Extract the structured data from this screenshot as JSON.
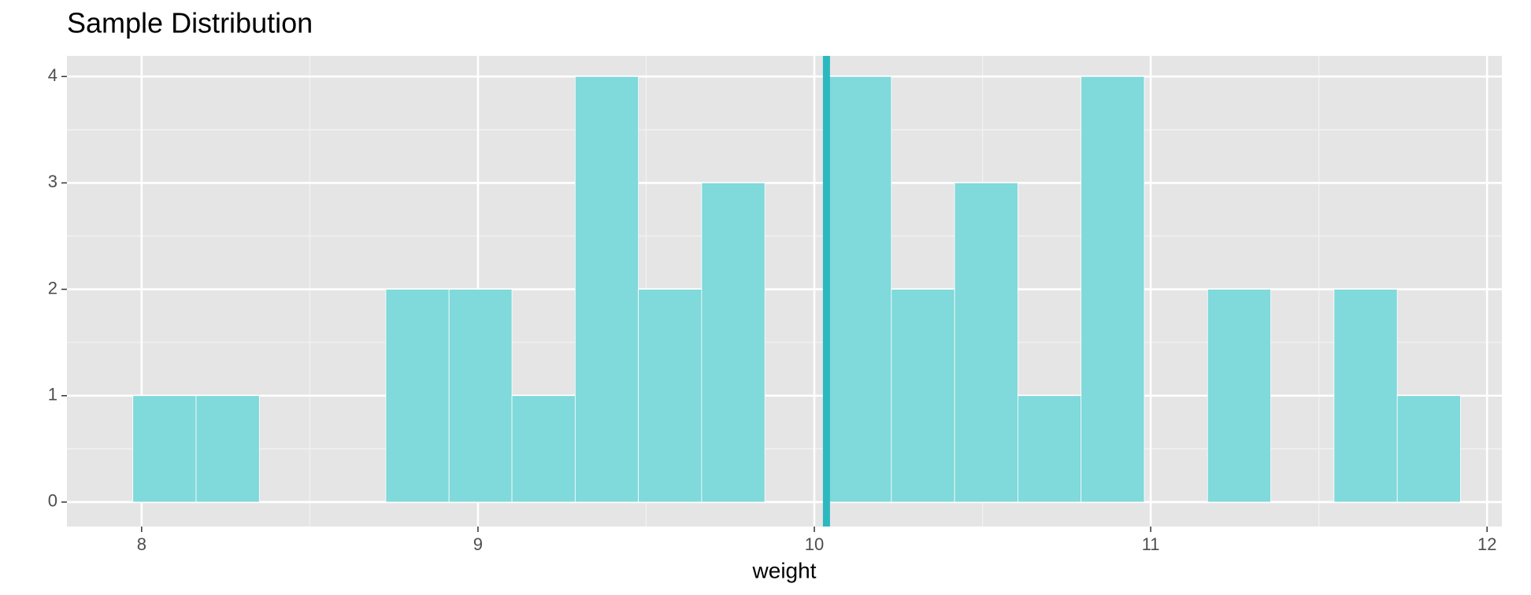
{
  "chart_data": {
    "type": "histogram",
    "title": "Sample Distribution",
    "x_label": "weight",
    "bins": [
      7.974,
      8.162,
      8.35,
      8.538,
      8.726,
      8.914,
      9.101,
      9.289,
      9.477,
      9.665,
      9.853,
      10.041,
      10.229,
      10.417,
      10.605,
      10.793,
      10.981,
      11.169,
      11.357,
      11.545,
      11.733,
      11.921
    ],
    "values": [
      1,
      1,
      0,
      0,
      2,
      2,
      1,
      4,
      2,
      3,
      0,
      4,
      2,
      3,
      1,
      4,
      0,
      2,
      0,
      2,
      1
    ],
    "color": "#80d9db",
    "edge_color": "#ffffff",
    "vline": 10.036,
    "vline_color": "#2cb8bf",
    "xlim": [
      7.778,
      12.044
    ],
    "xticks": [
      8,
      9,
      10,
      11,
      12
    ],
    "ylim": [
      -0.23,
      4.194
    ],
    "yticks": [
      0,
      1,
      2,
      3,
      4
    ],
    "grid": true
  }
}
